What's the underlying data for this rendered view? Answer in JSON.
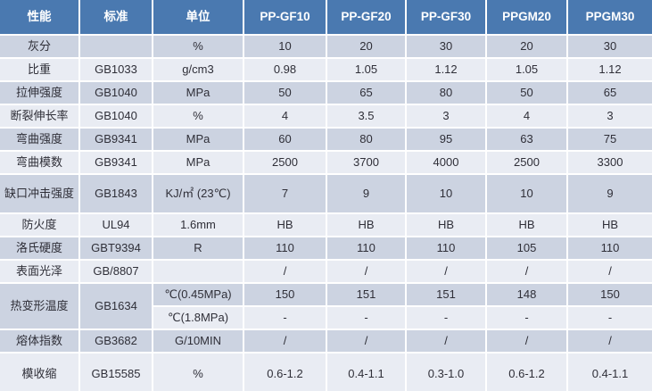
{
  "colors": {
    "header_bg": "#4a79b0",
    "header_text": "#ffffff",
    "band_dark": "#ccd3e1",
    "band_light": "#e9ecf3",
    "merged_cell_bg": "#e5e8f1",
    "body_text": "#2f2f38",
    "separator": "#ffffff"
  },
  "table": {
    "columns": [
      {
        "key": "property",
        "label": "性能"
      },
      {
        "key": "standard",
        "label": "标准"
      },
      {
        "key": "unit",
        "label": "单位"
      },
      {
        "key": "pp-gf10",
        "label": "PP-GF10"
      },
      {
        "key": "pp-gf20",
        "label": "PP-GF20"
      },
      {
        "key": "pp-gf30",
        "label": "PP-GF30"
      },
      {
        "key": "ppgm20",
        "label": "PPGM20"
      },
      {
        "key": "ppgm30",
        "label": "PPGM30"
      }
    ],
    "rows": [
      {
        "property": "灰分",
        "standard": "",
        "unit": "%",
        "values": [
          "10",
          "20",
          "30",
          "20",
          "30"
        ]
      },
      {
        "property": "比重",
        "standard": "GB1033",
        "unit": "g/cm3",
        "values": [
          "0.98",
          "1.05",
          "1.12",
          "1.05",
          "1.12"
        ]
      },
      {
        "property": "拉伸强度",
        "standard": "GB1040",
        "unit": "MPa",
        "values": [
          "50",
          "65",
          "80",
          "50",
          "65"
        ]
      },
      {
        "property": "断裂伸长率",
        "standard": "GB1040",
        "unit": "%",
        "values": [
          "4",
          "3.5",
          "3",
          "4",
          "3"
        ]
      },
      {
        "property": "弯曲强度",
        "standard": "GB9341",
        "unit": "MPa",
        "values": [
          "60",
          "80",
          "95",
          "63",
          "75"
        ]
      },
      {
        "property": "弯曲模数",
        "standard": "GB9341",
        "unit": "MPa",
        "values": [
          "2500",
          "3700",
          "4000",
          "2500",
          "3300"
        ]
      },
      {
        "property": "缺口冲击强度",
        "standard": "GB1843",
        "unit": "KJ/㎡ (23℃)",
        "values": [
          "7",
          "9",
          "10",
          "10",
          "9"
        ],
        "tall": true
      },
      {
        "property": "防火度",
        "standard": "UL94",
        "unit": "1.6mm",
        "values": [
          "HB",
          "HB",
          "HB",
          "HB",
          "HB"
        ]
      },
      {
        "property": "洛氏硬度",
        "standard": "GBT9394",
        "unit": "R",
        "values": [
          "110",
          "110",
          "110",
          "105",
          "110"
        ]
      },
      {
        "property": "表面光泽",
        "standard": "GB/8807",
        "unit": "",
        "values": [
          "/",
          "/",
          "/",
          "/",
          "/"
        ]
      },
      {
        "property": "热变形温度",
        "standard": "GB1634",
        "unit": "℃(0.45MPa)",
        "values": [
          "150",
          "151",
          "151",
          "148",
          "150"
        ],
        "property_rowspan": 2
      },
      {
        "unit": "℃(1.8MPa)",
        "values": [
          "-",
          "-",
          "-",
          "-",
          "-"
        ],
        "merged_into_prev": true
      },
      {
        "property": "熔体指数",
        "standard": "GB3682",
        "unit": "G/10MIN",
        "values": [
          "/",
          "/",
          "/",
          "/",
          "/"
        ]
      },
      {
        "property": "模收缩",
        "standard": "GB15585",
        "unit": "%",
        "values": [
          "0.6-1.2",
          "0.4-1.1",
          "0.3-1.0",
          "0.6-1.2",
          "0.4-1.1"
        ],
        "last": true
      }
    ]
  }
}
